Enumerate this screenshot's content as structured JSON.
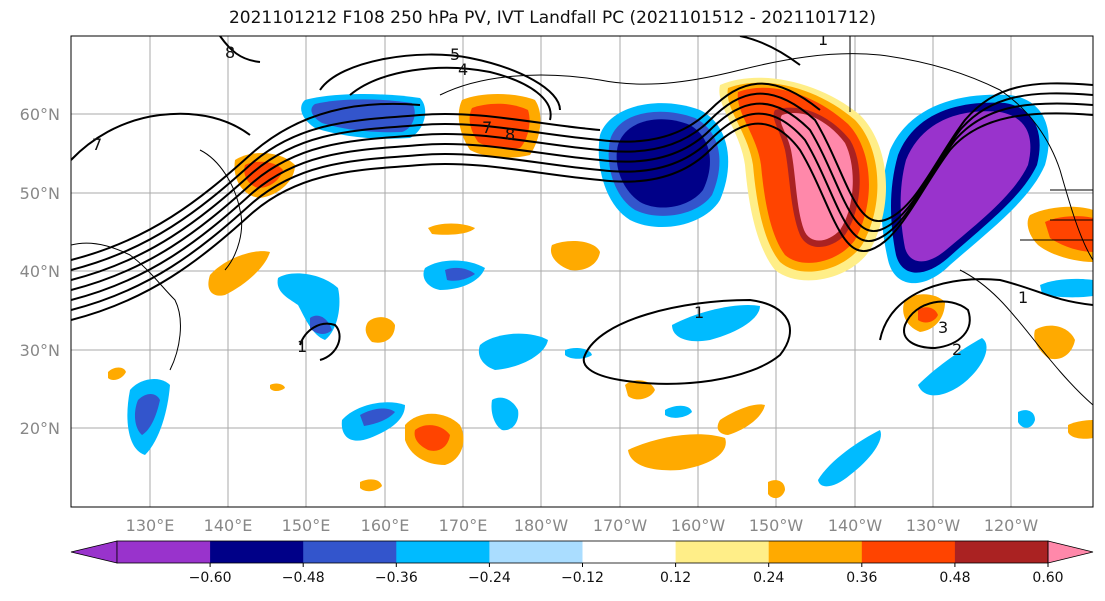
{
  "title": "2021101212 F108 250 hPa PV, IVT Landfall PC (2021101512 - 2021101712)",
  "map": {
    "lat_labels": [
      "60°N",
      "50°N",
      "40°N",
      "30°N",
      "20°N"
    ],
    "lon_labels": [
      "130°E",
      "140°E",
      "150°E",
      "160°E",
      "170°E",
      "180°W",
      "170°W",
      "160°W",
      "150°W",
      "140°W",
      "130°W",
      "120°W"
    ],
    "contour_labels": [
      "8",
      "5",
      "4",
      "7",
      "8",
      "7",
      "1",
      "1",
      "3",
      "2",
      "1",
      "1"
    ]
  },
  "colorbar": {
    "colors": [
      "#9933cc",
      "#000088",
      "#3355cc",
      "#00bbff",
      "#aaddff",
      "#ffffff",
      "#ffee88",
      "#ffaa00",
      "#ff4400",
      "#aa2222",
      "#ff88aa"
    ],
    "tick_labels": [
      "-0.60",
      "-0.48",
      "-0.36",
      "-0.24",
      "-0.12",
      "0.12",
      "0.24",
      "0.36",
      "0.48",
      "0.60"
    ]
  }
}
